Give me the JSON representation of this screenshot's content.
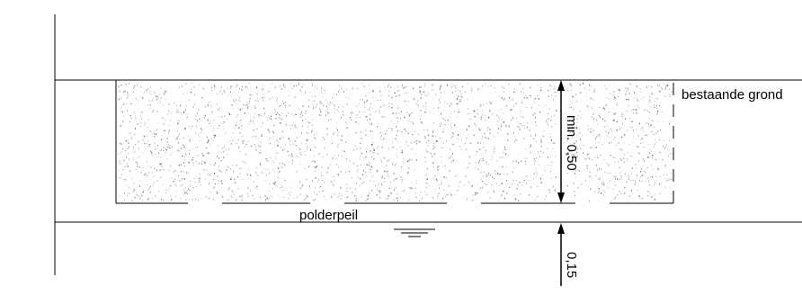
{
  "labels": {
    "existing_ground": "bestaande grond",
    "polder_level": "polderpeil",
    "min_depth": "min. 0,50",
    "offset": "0,15"
  },
  "colors": {
    "line": "#000000",
    "background": "#ffffff",
    "speckle": "#555555"
  },
  "icons": {
    "water_level": "water-level-symbol",
    "arrow": "dimension-arrow"
  }
}
